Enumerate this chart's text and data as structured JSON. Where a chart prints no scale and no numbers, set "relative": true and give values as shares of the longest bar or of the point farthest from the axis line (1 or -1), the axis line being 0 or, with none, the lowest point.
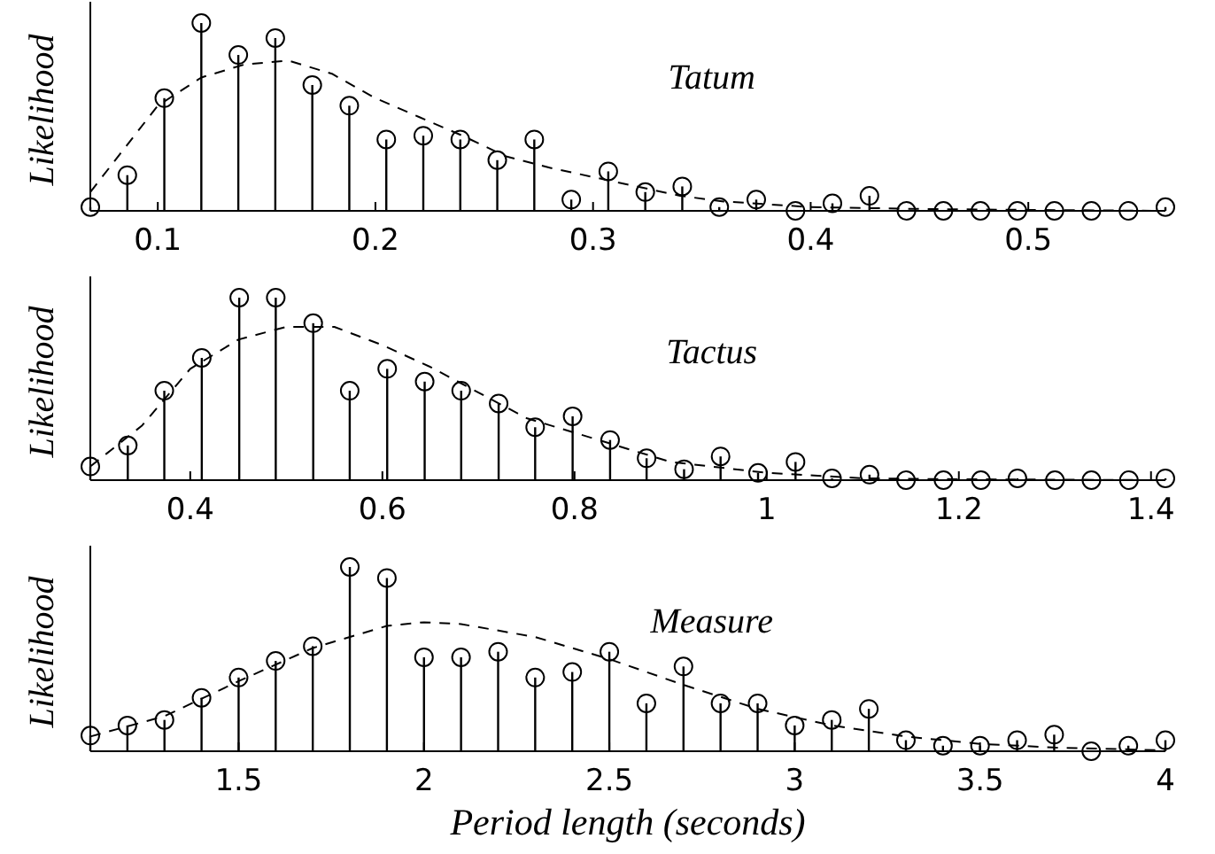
{
  "chart_data": [
    {
      "type": "lollipop",
      "ylabel": "Likelihood",
      "annotations": [
        "Tatum"
      ],
      "relative": true,
      "xlim": [
        0.069,
        0.563
      ],
      "xticks": [
        0.1,
        0.2,
        0.3,
        0.4,
        0.5
      ],
      "grid": false,
      "series": [
        {
          "color": "#000000",
          "marker": "circle",
          "x": [
            0.069,
            0.086,
            0.103,
            0.12,
            0.137,
            0.154,
            0.171,
            0.188,
            0.205,
            0.222,
            0.239,
            0.256,
            0.273,
            0.29,
            0.307,
            0.324,
            0.341,
            0.358,
            0.375,
            0.393,
            0.41,
            0.427,
            0.444,
            0.461,
            0.478,
            0.495,
            0.512,
            0.529,
            0.546,
            0.563
          ],
          "values": [
            0.02,
            0.19,
            0.6,
            1.0,
            0.83,
            0.92,
            0.67,
            0.56,
            0.38,
            0.4,
            0.38,
            0.27,
            0.38,
            0.06,
            0.21,
            0.1,
            0.13,
            0.02,
            0.06,
            0,
            0.04,
            0.08,
            0,
            0,
            0,
            0,
            0,
            0,
            0,
            0.02
          ]
        },
        {
          "type": "line",
          "color": "#000000",
          "line_style": "dashed",
          "marker": "none",
          "x": [
            0.069,
            0.1,
            0.12,
            0.14,
            0.16,
            0.18,
            0.2,
            0.22,
            0.24,
            0.26,
            0.28,
            0.3,
            0.32,
            0.34,
            0.36,
            0.4,
            0.45,
            0.5,
            0.563
          ],
          "values": [
            0.1,
            0.56,
            0.71,
            0.78,
            0.8,
            0.73,
            0.6,
            0.5,
            0.4,
            0.29,
            0.23,
            0.18,
            0.13,
            0.08,
            0.05,
            0.02,
            0.01,
            0.005,
            0
          ]
        }
      ]
    },
    {
      "type": "lollipop",
      "ylabel": "Likelihood",
      "annotations": [
        "Tactus"
      ],
      "relative": true,
      "xlim": [
        0.296,
        1.415
      ],
      "xticks": [
        0.4,
        0.6,
        0.8,
        1,
        1.2,
        1.4
      ],
      "grid": false,
      "series": [
        {
          "color": "#000000",
          "marker": "circle",
          "x": [
            0.296,
            0.335,
            0.373,
            0.412,
            0.451,
            0.489,
            0.528,
            0.566,
            0.605,
            0.644,
            0.682,
            0.721,
            0.759,
            0.798,
            0.837,
            0.875,
            0.914,
            0.952,
            0.991,
            1.03,
            1.068,
            1.107,
            1.145,
            1.184,
            1.223,
            1.261,
            1.3,
            1.338,
            1.377,
            1.415
          ],
          "values": [
            0.075,
            0.19,
            0.49,
            0.67,
            1.0,
            1.0,
            0.86,
            0.49,
            0.61,
            0.54,
            0.49,
            0.42,
            0.29,
            0.35,
            0.22,
            0.12,
            0.06,
            0.13,
            0.04,
            0.1,
            0.01,
            0.03,
            0,
            0,
            0,
            0.01,
            0,
            0,
            0,
            0.01
          ]
        },
        {
          "type": "line",
          "color": "#000000",
          "line_style": "dashed",
          "marker": "none",
          "x": [
            0.296,
            0.35,
            0.4,
            0.45,
            0.5,
            0.55,
            0.6,
            0.65,
            0.7,
            0.75,
            0.8,
            0.85,
            0.9,
            0.95,
            1.0,
            1.1,
            1.2,
            1.415
          ],
          "values": [
            0.075,
            0.3,
            0.61,
            0.77,
            0.84,
            0.84,
            0.74,
            0.62,
            0.48,
            0.34,
            0.26,
            0.18,
            0.1,
            0.07,
            0.04,
            0.01,
            0.005,
            0
          ]
        }
      ]
    },
    {
      "type": "lollipop",
      "ylabel": "Likelihood",
      "xlabel": "Period length (seconds)",
      "annotations": [
        "Measure"
      ],
      "relative": true,
      "xlim": [
        1.1,
        4.0
      ],
      "xticks": [
        1.5,
        2,
        2.5,
        3,
        3.5,
        4
      ],
      "grid": false,
      "series": [
        {
          "color": "#000000",
          "marker": "circle",
          "x": [
            1.1,
            1.2,
            1.3,
            1.4,
            1.5,
            1.6,
            1.7,
            1.8,
            1.9,
            2.0,
            2.1,
            2.2,
            2.3,
            2.4,
            2.5,
            2.6,
            2.7,
            2.8,
            2.9,
            3.0,
            3.1,
            3.2,
            3.3,
            3.4,
            3.5,
            3.6,
            3.7,
            3.8,
            3.9,
            4.0
          ],
          "values": [
            0.085,
            0.14,
            0.17,
            0.29,
            0.4,
            0.49,
            0.57,
            1.0,
            0.94,
            0.51,
            0.51,
            0.54,
            0.4,
            0.43,
            0.54,
            0.26,
            0.46,
            0.26,
            0.26,
            0.14,
            0.17,
            0.23,
            0.06,
            0.03,
            0.03,
            0.06,
            0.09,
            0,
            0.03,
            0.06
          ]
        },
        {
          "type": "line",
          "color": "#000000",
          "line_style": "dashed",
          "marker": "none",
          "x": [
            1.1,
            1.3,
            1.5,
            1.7,
            1.9,
            2.0,
            2.1,
            2.3,
            2.5,
            2.7,
            2.9,
            3.1,
            3.3,
            3.5,
            3.7,
            4.0
          ],
          "values": [
            0.08,
            0.19,
            0.38,
            0.56,
            0.68,
            0.7,
            0.69,
            0.62,
            0.5,
            0.36,
            0.23,
            0.14,
            0.08,
            0.04,
            0.02,
            0.005
          ]
        }
      ]
    }
  ]
}
